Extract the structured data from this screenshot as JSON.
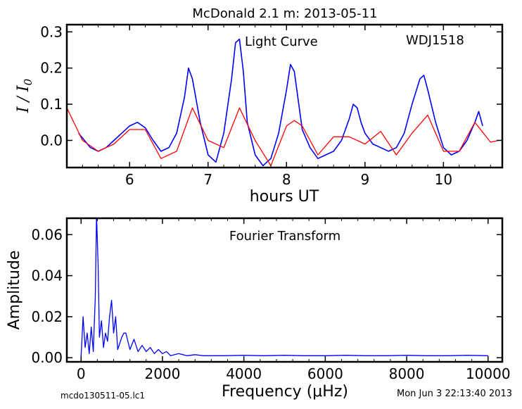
{
  "figure": {
    "title": "McDonald 2.1 m:  2013-05-11",
    "footer_left": "mcdo130511-05.lc1",
    "footer_right": "Mon Jun  3 22:13:40 2013"
  },
  "chart_data": [
    {
      "type": "line",
      "name": "light-curve",
      "annotation": "Light Curve",
      "target_label": "WDJ1518",
      "xlabel": "hours UT",
      "ylabel": "I / I0",
      "xlim": [
        5.2,
        10.75
      ],
      "ylim": [
        -0.075,
        0.32
      ],
      "x_ticks": [
        6,
        7,
        8,
        9,
        10
      ],
      "y_ticks": [
        0.0,
        0.1,
        0.2,
        0.3
      ],
      "y_tick_labels": [
        "0.0",
        "0.1",
        "0.2",
        "0.3"
      ],
      "grid": false,
      "series": [
        {
          "color": "#0000ff",
          "x": [
            5.35,
            5.5,
            5.6,
            5.7,
            5.8,
            5.9,
            6.0,
            6.1,
            6.2,
            6.3,
            6.4,
            6.5,
            6.6,
            6.7,
            6.75,
            6.8,
            6.9,
            7.0,
            7.1,
            7.2,
            7.3,
            7.35,
            7.4,
            7.45,
            7.5,
            7.6,
            7.7,
            7.8,
            7.9,
            8.0,
            8.05,
            8.1,
            8.15,
            8.2,
            8.3,
            8.4,
            8.5,
            8.6,
            8.7,
            8.8,
            8.85,
            8.9,
            8.95,
            9.0,
            9.1,
            9.2,
            9.3,
            9.4,
            9.5,
            9.6,
            9.7,
            9.75,
            9.8,
            9.9,
            10.0,
            10.1,
            10.2,
            10.3,
            10.4,
            10.45,
            10.5
          ],
          "y": [
            0.02,
            -0.02,
            -0.03,
            -0.02,
            0.0,
            0.02,
            0.04,
            0.05,
            0.035,
            0.0,
            -0.03,
            -0.02,
            0.02,
            0.12,
            0.2,
            0.17,
            0.05,
            -0.04,
            -0.06,
            0.02,
            0.17,
            0.27,
            0.28,
            0.19,
            0.05,
            -0.04,
            -0.07,
            -0.05,
            0.02,
            0.14,
            0.21,
            0.19,
            0.11,
            0.03,
            -0.02,
            -0.05,
            -0.04,
            -0.03,
            0.0,
            0.06,
            0.1,
            0.09,
            0.05,
            0.02,
            -0.01,
            -0.02,
            -0.03,
            -0.02,
            0.02,
            0.1,
            0.17,
            0.18,
            0.14,
            0.05,
            -0.02,
            -0.04,
            -0.03,
            0.0,
            0.05,
            0.08,
            0.04
          ]
        },
        {
          "color": "#ff0000",
          "x": [
            5.2,
            5.4,
            5.6,
            5.8,
            6.0,
            6.2,
            6.4,
            6.6,
            6.8,
            7.0,
            7.2,
            7.4,
            7.6,
            7.8,
            8.0,
            8.1,
            8.2,
            8.4,
            8.6,
            8.8,
            9.0,
            9.2,
            9.4,
            9.6,
            9.8,
            10.0,
            10.2,
            10.4,
            10.6,
            10.7
          ],
          "y": [
            0.09,
            0.0,
            -0.03,
            -0.01,
            0.03,
            0.03,
            -0.05,
            -0.03,
            0.09,
            0.0,
            -0.02,
            0.09,
            0.0,
            -0.07,
            0.04,
            0.055,
            0.04,
            -0.04,
            0.01,
            0.01,
            -0.01,
            0.025,
            -0.04,
            0.02,
            0.07,
            -0.03,
            -0.03,
            0.05,
            -0.005,
            0.0
          ]
        }
      ]
    },
    {
      "type": "line",
      "name": "fourier-transform",
      "annotation": "Fourier Transform",
      "xlabel": "Frequency (μHz)",
      "ylabel": "Amplitude",
      "xlim": [
        -350,
        10350
      ],
      "ylim": [
        -0.002,
        0.068
      ],
      "x_ticks": [
        0,
        2000,
        4000,
        6000,
        8000,
        10000
      ],
      "y_ticks": [
        0.0,
        0.02,
        0.04,
        0.06
      ],
      "y_tick_labels": [
        "0.00",
        "0.02",
        "0.04",
        "0.06"
      ],
      "grid": false,
      "series": [
        {
          "color": "#0000ff",
          "x": [
            0,
            50,
            100,
            150,
            200,
            250,
            300,
            350,
            380,
            420,
            450,
            500,
            550,
            600,
            650,
            700,
            750,
            800,
            850,
            900,
            1000,
            1050,
            1100,
            1200,
            1300,
            1400,
            1500,
            1600,
            1700,
            1800,
            1900,
            2000,
            2100,
            2200,
            2400,
            2600,
            2800,
            3000,
            3500,
            4000,
            4500,
            5000,
            5500,
            6000,
            6500,
            7000,
            7500,
            8000,
            8500,
            9000,
            9500,
            10000
          ],
          "y": [
            0.0,
            0.02,
            0.005,
            0.012,
            0.002,
            0.015,
            0.003,
            0.03,
            0.07,
            0.045,
            0.01,
            0.018,
            0.005,
            0.012,
            0.008,
            0.02,
            0.028,
            0.012,
            0.02,
            0.004,
            0.01,
            0.012,
            0.012,
            0.004,
            0.009,
            0.003,
            0.006,
            0.003,
            0.005,
            0.002,
            0.004,
            0.002,
            0.003,
            0.001,
            0.002,
            0.001,
            0.0015,
            0.001,
            0.001,
            0.0012,
            0.001,
            0.0012,
            0.001,
            0.001,
            0.0012,
            0.001,
            0.001,
            0.0012,
            0.001,
            0.001,
            0.0012,
            0.001
          ]
        }
      ]
    }
  ]
}
